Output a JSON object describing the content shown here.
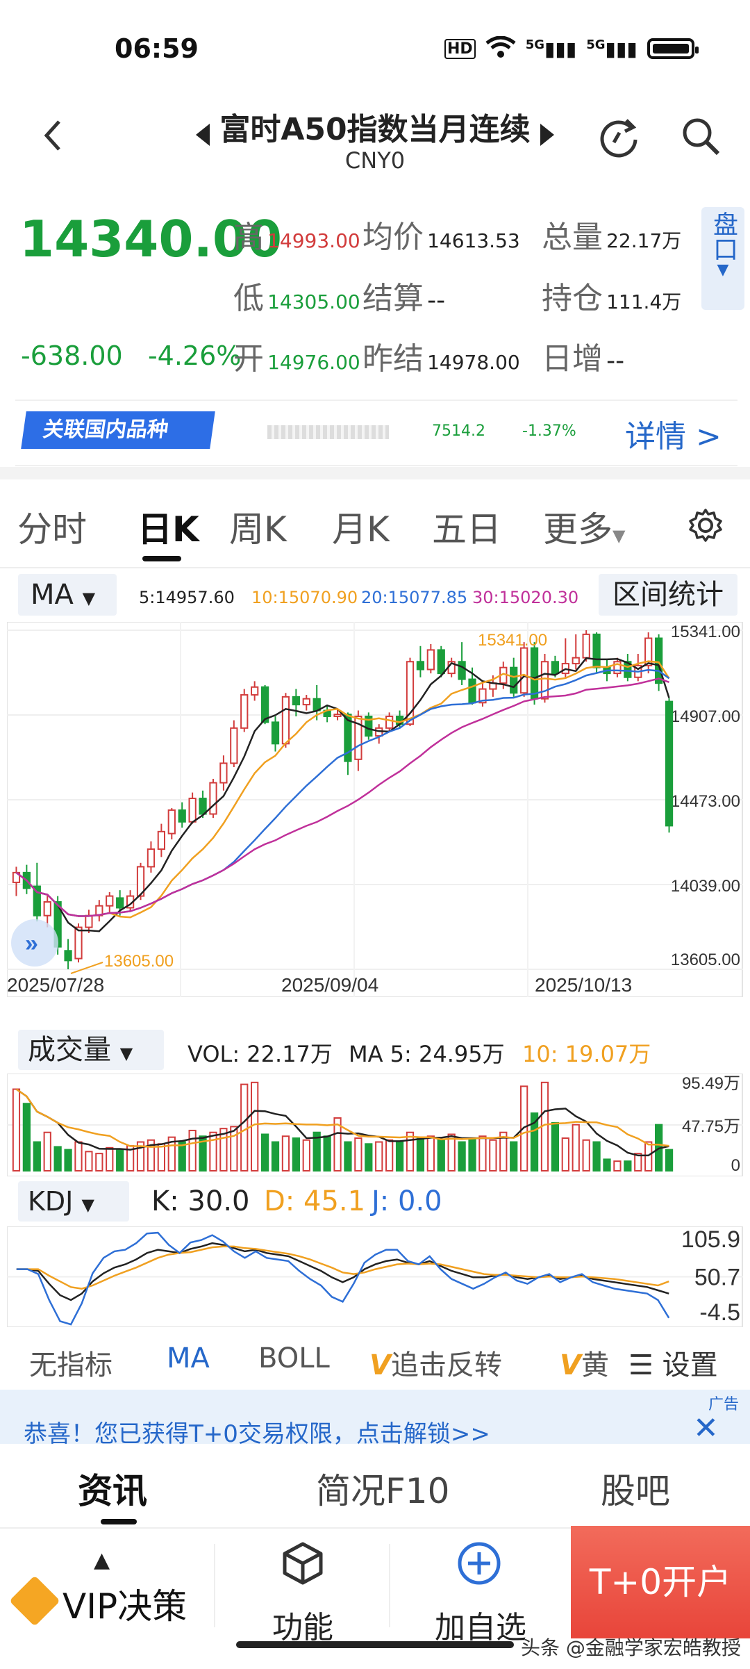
{
  "status": {
    "time": "06:59",
    "signal1": "5G",
    "signal2": "5G",
    "hd": "HD"
  },
  "header": {
    "title": "富时A50指数当月连续",
    "subtitle": "CNY0"
  },
  "quote": {
    "price": "14340.00",
    "change": "-638.00",
    "change_pct": "-4.26%",
    "labels": {
      "high": "高",
      "low": "低",
      "open": "开",
      "avg": "均价",
      "settle": "结算",
      "prev_settle": "昨结",
      "volume": "总量",
      "open_interest": "持仓",
      "daily_increase": "日增"
    },
    "values": {
      "high": "14993.00",
      "low": "14305.00",
      "open": "14976.00",
      "avg": "14613.53",
      "settle": "--",
      "prev_settle": "14978.00",
      "volume": "22.17万",
      "open_interest": "111.4万",
      "daily_increase": "--"
    },
    "pankou": "盘口"
  },
  "related": {
    "badge": "关联国内品种",
    "price": "7514.2",
    "pct": "-1.37%",
    "detail": "详情 >"
  },
  "tabs": [
    "分时",
    "日K",
    "周K",
    "月K",
    "五日",
    "更多"
  ],
  "ma_bar": {
    "selector": "MA",
    "ma5": "5:14957.60",
    "ma10": "10:15070.90",
    "ma20": "20:15077.85",
    "ma30": "30:15020.30",
    "range_btn": "区间统计"
  },
  "colors": {
    "up": "#d23c3c",
    "down": "#1a9e3b",
    "ma5": "#222222",
    "ma10": "#f0a020",
    "ma20": "#2e6fd6",
    "ma30": "#c0309a",
    "accent": "#2567c9"
  },
  "chart_data": [
    {
      "type": "candlestick",
      "title": "",
      "y_ticks": [
        "15341.00",
        "14907.00",
        "14473.00",
        "14039.00",
        "13605.00"
      ],
      "x_ticks": [
        "2025/07/28",
        "2025/09/04",
        "2025/10/13"
      ],
      "ylim": [
        13605,
        15341
      ],
      "annotations": {
        "max": "15341.00",
        "min": "13605.00"
      },
      "candles": [
        [
          14050,
          14100,
          13980,
          14130
        ],
        [
          14100,
          14020,
          13990,
          14140
        ],
        [
          14030,
          13880,
          13850,
          14150
        ],
        [
          13880,
          13950,
          13820,
          13990
        ],
        [
          13950,
          13720,
          13680,
          13980
        ],
        [
          13700,
          13650,
          13605,
          13760
        ],
        [
          13660,
          13820,
          13640,
          13840
        ],
        [
          13820,
          13880,
          13790,
          13910
        ],
        [
          13880,
          13930,
          13850,
          13960
        ],
        [
          13930,
          13980,
          13890,
          14000
        ],
        [
          13970,
          13920,
          13880,
          14010
        ],
        [
          13920,
          13980,
          13900,
          14010
        ],
        [
          13980,
          14130,
          13960,
          14150
        ],
        [
          14130,
          14220,
          14100,
          14260
        ],
        [
          14220,
          14310,
          14180,
          14350
        ],
        [
          14300,
          14420,
          14270,
          14430
        ],
        [
          14420,
          14360,
          14330,
          14460
        ],
        [
          14360,
          14480,
          14350,
          14510
        ],
        [
          14480,
          14400,
          14380,
          14520
        ],
        [
          14400,
          14560,
          14380,
          14580
        ],
        [
          14560,
          14660,
          14520,
          14700
        ],
        [
          14660,
          14840,
          14640,
          14880
        ],
        [
          14840,
          15010,
          14820,
          15040
        ],
        [
          15010,
          15050,
          14980,
          15080
        ],
        [
          15050,
          14870,
          14860,
          15060
        ],
        [
          14870,
          14760,
          14720,
          14900
        ],
        [
          14760,
          15000,
          14740,
          15020
        ],
        [
          15000,
          14960,
          14900,
          15040
        ],
        [
          14960,
          14990,
          14930,
          15010
        ],
        [
          14990,
          14930,
          14880,
          15060
        ],
        [
          14930,
          14900,
          14870,
          14960
        ],
        [
          14900,
          14910,
          14880,
          14940
        ],
        [
          14910,
          14670,
          14600,
          14920
        ],
        [
          14680,
          14900,
          14620,
          14930
        ],
        [
          14900,
          14800,
          14780,
          14920
        ],
        [
          14800,
          14840,
          14760,
          14860
        ],
        [
          14840,
          14900,
          14820,
          14920
        ],
        [
          14900,
          14860,
          14840,
          14930
        ],
        [
          14860,
          15180,
          14850,
          15200
        ],
        [
          15180,
          15140,
          15100,
          15260
        ],
        [
          15140,
          15240,
          15120,
          15270
        ],
        [
          15240,
          15120,
          15100,
          15260
        ],
        [
          15120,
          15180,
          15100,
          15200
        ],
        [
          15180,
          15090,
          15060,
          15280
        ],
        [
          15090,
          14970,
          14960,
          15150
        ],
        [
          14970,
          15040,
          14950,
          15070
        ],
        [
          15040,
          15070,
          15000,
          15110
        ],
        [
          15070,
          15150,
          15040,
          15180
        ],
        [
          15150,
          15020,
          15000,
          15200
        ],
        [
          15020,
          15250,
          15000,
          15280
        ],
        [
          15250,
          14990,
          14960,
          15280
        ],
        [
          14990,
          15180,
          14970,
          15220
        ],
        [
          15180,
          15120,
          15100,
          15210
        ],
        [
          15120,
          15170,
          15100,
          15300
        ],
        [
          15170,
          15200,
          15140,
          15320
        ],
        [
          15200,
          15320,
          15180,
          15341
        ],
        [
          15320,
          15150,
          15120,
          15330
        ],
        [
          15150,
          15120,
          15080,
          15190
        ],
        [
          15120,
          15180,
          15100,
          15200
        ],
        [
          15180,
          15100,
          15080,
          15220
        ],
        [
          15100,
          15160,
          15080,
          15220
        ],
        [
          15160,
          15300,
          15120,
          15330
        ],
        [
          15300,
          15070,
          15030,
          15320
        ],
        [
          14976,
          14340,
          14305,
          14993
        ]
      ]
    },
    {
      "type": "bar",
      "title": "",
      "labels": {
        "selector": "成交量",
        "vol": "VOL: 22.17万",
        "ma5": "MA 5: 24.95万",
        "ma10": "10: 19.07万"
      },
      "y_ticks": [
        "95.49万",
        "47.75万",
        "0"
      ],
      "ylim": [
        0,
        95.49
      ],
      "values": [
        85,
        70,
        30,
        40,
        25,
        22,
        30,
        20,
        18,
        24,
        22,
        26,
        30,
        32,
        28,
        35,
        30,
        42,
        36,
        40,
        44,
        46,
        90,
        92,
        38,
        30,
        36,
        34,
        32,
        40,
        36,
        55,
        30,
        34,
        28,
        30,
        32,
        30,
        40,
        34,
        36,
        32,
        38,
        30,
        34,
        36,
        32,
        40,
        30,
        88,
        60,
        92,
        50,
        34,
        48,
        32,
        30,
        12,
        10,
        10,
        18,
        30,
        48,
        22
      ]
    },
    {
      "type": "line",
      "title": "",
      "labels": {
        "selector": "KDJ",
        "k": "K: 30.0",
        "d": "D: 45.1",
        "j": "J: 0.0"
      },
      "y_ticks": [
        "105.9",
        "50.7",
        "-4.5"
      ],
      "ylim": [
        -4.5,
        105.9
      ],
      "series": [
        {
          "name": "K",
          "values": [
            60,
            60,
            58,
            42,
            28,
            22,
            30,
            45,
            55,
            62,
            66,
            72,
            80,
            84,
            82,
            80,
            85,
            88,
            92,
            90,
            86,
            82,
            84,
            80,
            78,
            76,
            70,
            64,
            58,
            50,
            44,
            50,
            60,
            66,
            70,
            72,
            68,
            66,
            70,
            64,
            58,
            54,
            50,
            50,
            52,
            54,
            50,
            48,
            50,
            52,
            48,
            50,
            52,
            48,
            46,
            44,
            42,
            40,
            38,
            34,
            30
          ]
        },
        {
          "name": "D",
          "values": [
            60,
            60,
            60,
            52,
            45,
            38,
            36,
            40,
            46,
            52,
            57,
            62,
            68,
            74,
            78,
            80,
            81,
            84,
            87,
            88,
            88,
            86,
            85,
            83,
            81,
            79,
            76,
            72,
            67,
            62,
            56,
            54,
            56,
            60,
            63,
            66,
            67,
            66,
            67,
            66,
            63,
            60,
            57,
            54,
            53,
            53,
            52,
            51,
            50,
            51,
            50,
            50,
            51,
            50,
            49,
            48,
            46,
            44,
            42,
            40,
            45
          ]
        },
        {
          "name": "J",
          "values": [
            60,
            60,
            54,
            22,
            -4,
            -8,
            18,
            55,
            74,
            82,
            84,
            92,
            104,
            105,
            90,
            80,
            93,
            96,
            102,
            94,
            82,
            74,
            82,
            74,
            72,
            70,
            58,
            48,
            40,
            26,
            20,
            42,
            68,
            78,
            84,
            84,
            70,
            66,
            76,
            60,
            48,
            42,
            36,
            42,
            50,
            56,
            46,
            42,
            50,
            54,
            44,
            50,
            54,
            44,
            40,
            36,
            34,
            32,
            30,
            22,
            0
          ]
        }
      ]
    }
  ],
  "indicators": [
    "无指标",
    "MA",
    "BOLL",
    "追击反转",
    "黄",
    "设置"
  ],
  "ad": {
    "text": "恭喜！您已获得T+0交易权限，点击解锁>>",
    "tag": "广告"
  },
  "news_tabs": [
    "资讯",
    "简况F10",
    "股吧"
  ],
  "bottom": {
    "vip": "VIP决策",
    "func": "功能",
    "add": "加自选",
    "open": "T+0开户"
  },
  "watermark": "头条 @金融学家宏皓教授"
}
